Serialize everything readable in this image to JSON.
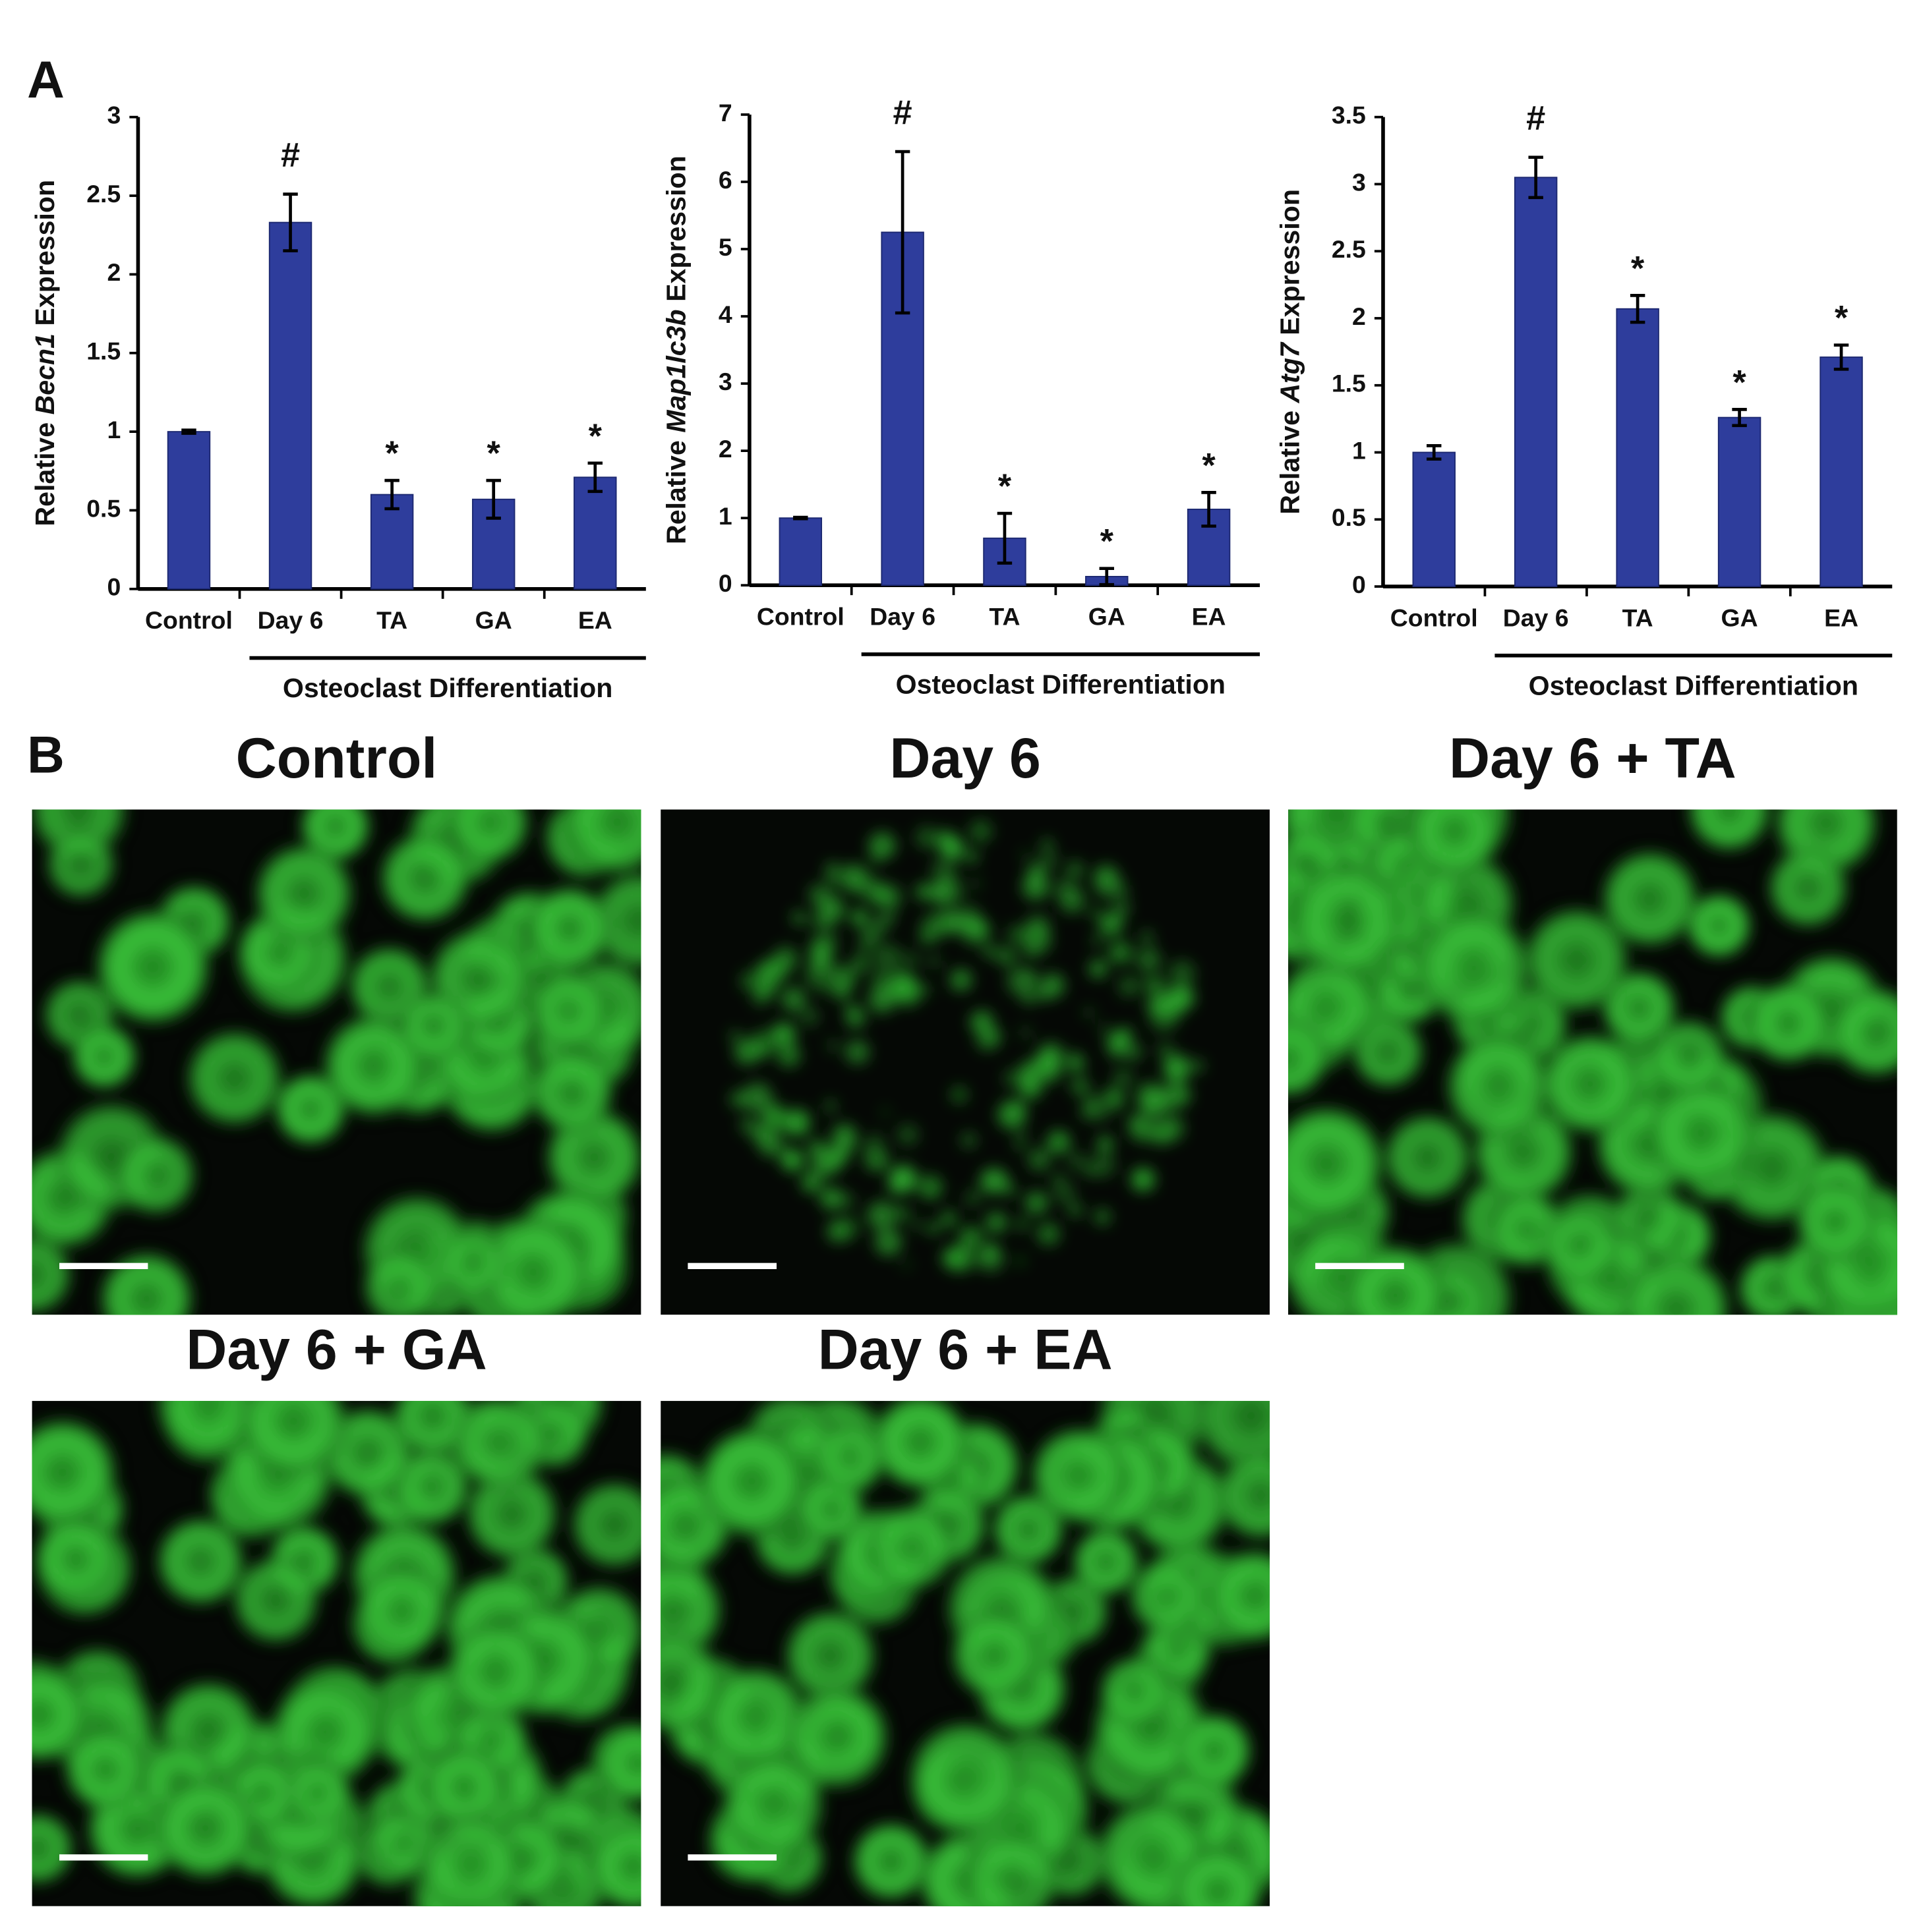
{
  "panel_labels": [
    "A",
    "B"
  ],
  "chart_data": [
    {
      "type": "bar",
      "ylabel": {
        "prefix": "Relative",
        "gene": "Becn1",
        "suffix": "Expression"
      },
      "categories": [
        "Control",
        "Day 6",
        "TA",
        "GA",
        "EA"
      ],
      "values": [
        1.0,
        2.33,
        0.6,
        0.57,
        0.71
      ],
      "errors": [
        0.01,
        0.18,
        0.09,
        0.12,
        0.09
      ],
      "annotations": [
        null,
        "#",
        "*",
        "*",
        "*"
      ],
      "group_label": "Osteoclast Differentiation",
      "color": "#2e3d9c",
      "ylim": [
        0,
        3
      ],
      "yticks": [
        0,
        0.5,
        1,
        1.5,
        2,
        2.5,
        3
      ]
    },
    {
      "type": "bar",
      "ylabel": {
        "prefix": "Relative",
        "gene": "Map1lc3b",
        "suffix": "Expression"
      },
      "categories": [
        "Control",
        "Day 6",
        "TA",
        "GA",
        "EA"
      ],
      "values": [
        1.0,
        5.25,
        0.7,
        0.13,
        1.13
      ],
      "errors": [
        0.01,
        1.2,
        0.37,
        0.12,
        0.25
      ],
      "annotations": [
        null,
        "#",
        "*",
        "*",
        "*"
      ],
      "group_label": "Osteoclast Differentiation",
      "color": "#2e3d9c",
      "ylim": [
        0,
        7
      ],
      "yticks": [
        0,
        1,
        2,
        3,
        4,
        5,
        6,
        7
      ]
    },
    {
      "type": "bar",
      "ylabel": {
        "prefix": "Relative",
        "gene": "Atg7",
        "suffix": "Expression"
      },
      "categories": [
        "Control",
        "Day 6",
        "TA",
        "GA",
        "EA"
      ],
      "values": [
        1.0,
        3.05,
        2.07,
        1.26,
        1.71
      ],
      "errors": [
        0.05,
        0.15,
        0.1,
        0.06,
        0.09
      ],
      "annotations": [
        null,
        "#",
        "*",
        "*",
        "*"
      ],
      "group_label": "Osteoclast Differentiation",
      "color": "#2e3d9c",
      "ylim": [
        0,
        3.5
      ],
      "yticks": [
        0,
        0.5,
        1,
        1.5,
        2,
        2.5,
        3,
        3.5
      ]
    }
  ],
  "images": [
    {
      "title": "Control"
    },
    {
      "title": "Day 6"
    },
    {
      "title": "Day 6 + TA"
    },
    {
      "title": "Day 6 + GA"
    },
    {
      "title": "Day 6 + EA"
    }
  ]
}
